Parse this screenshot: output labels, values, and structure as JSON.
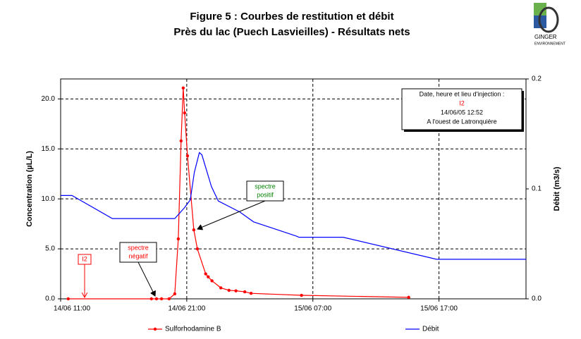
{
  "chart_data": {
    "type": "line",
    "title": "Figure 5 : Courbes de restitution et débit",
    "subtitle": "Près du lac (Puech Lasvieilles) - Résultats nets",
    "ylabel": "Concentration (µL/L)",
    "y2label": "Débit (m3/s)",
    "xlim": [
      11,
      47.9
    ],
    "ylim": [
      0,
      22
    ],
    "y2lim": [
      0,
      0.2
    ],
    "xticks": [
      {
        "value": 11,
        "label": "14/06 11:00"
      },
      {
        "value": 21,
        "label": "14/06 21:00"
      },
      {
        "value": 31,
        "label": "15/06 07:00"
      },
      {
        "value": 41,
        "label": "15/06 17:00"
      }
    ],
    "yticks": [
      {
        "value": 0,
        "label": "0.0"
      },
      {
        "value": 5,
        "label": "5.0"
      },
      {
        "value": 10,
        "label": "10.0"
      },
      {
        "value": 15,
        "label": "15.0"
      },
      {
        "value": 20,
        "label": "20.0"
      }
    ],
    "y2ticks": [
      {
        "value": 0,
        "label": "0.0"
      },
      {
        "value": 0.1,
        "label": "0.1"
      },
      {
        "value": 0.2,
        "label": "0.2"
      }
    ],
    "grid": true,
    "series": [
      {
        "name": "Sulforhodamine B",
        "color": "#ff0000",
        "markers": true,
        "x": [
          11.6,
          18.2,
          18.6,
          19.0,
          19.6,
          20.05,
          20.33,
          20.55,
          20.72,
          20.83,
          21.06,
          21.56,
          21.84,
          22.5,
          22.7,
          23.0,
          23.7,
          24.35,
          24.9,
          25.6,
          26.1,
          30.1,
          38.6
        ],
        "values": [
          0,
          0,
          0,
          0,
          0,
          0.5,
          6.0,
          15.8,
          21.1,
          18.6,
          14.3,
          6.9,
          5.0,
          2.5,
          2.2,
          1.8,
          1.1,
          0.85,
          0.8,
          0.7,
          0.55,
          0.35,
          0.15
        ]
      },
      {
        "name": "Débit",
        "color": "#0000ff",
        "axis": "y2",
        "markers": false,
        "x": [
          11,
          11.9,
          15.1,
          20.05,
          20.83,
          21.28,
          21.6,
          22.0,
          22.2,
          22.96,
          23.5,
          25.2,
          26.3,
          29.7,
          29.9,
          33.0,
          33.4,
          40.8,
          47.9
        ],
        "values": [
          0.094,
          0.094,
          0.073,
          0.073,
          0.083,
          0.09,
          0.115,
          0.133,
          0.131,
          0.102,
          0.089,
          0.079,
          0.07,
          0.057,
          0.056,
          0.056,
          0.056,
          0.036,
          0.036
        ]
      }
    ],
    "annotations": [
      [
        "I2"
      ],
      [
        "spectre",
        "négatif"
      ],
      [
        "spectre",
        "positif"
      ]
    ],
    "info_box": [
      "Date, heure et lieu d'injection :",
      "I2",
      "14/06/05 12:52",
      "A l'ouest de Latronquière"
    ],
    "logo": [
      "GINGER",
      "ENVIRONNEMENT"
    ]
  }
}
